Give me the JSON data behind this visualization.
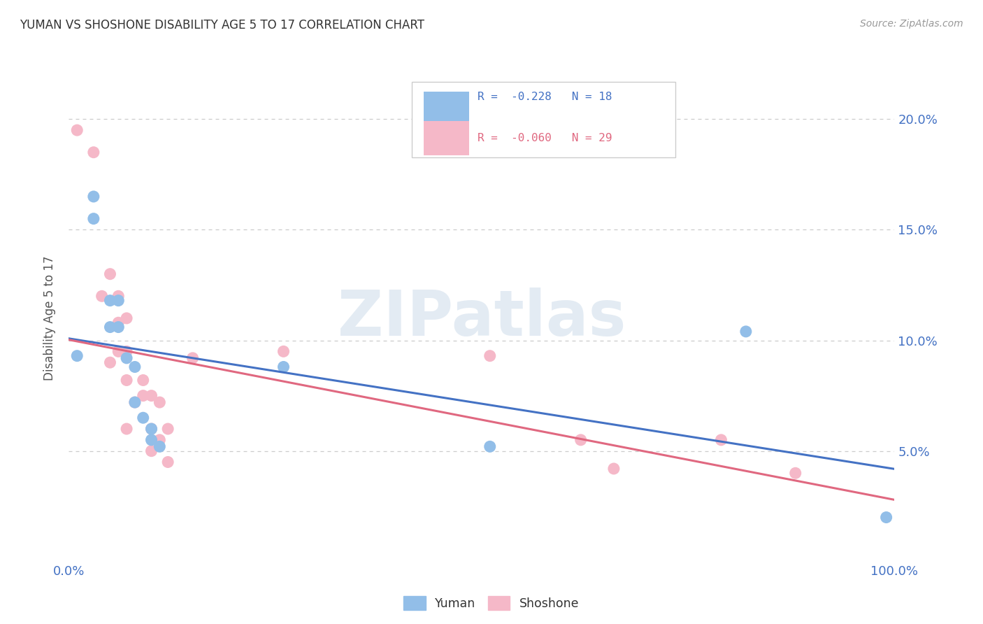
{
  "title": "YUMAN VS SHOSHONE DISABILITY AGE 5 TO 17 CORRELATION CHART",
  "source": "Source: ZipAtlas.com",
  "ylabel": "Disability Age 5 to 17",
  "xlim": [
    0,
    1.0
  ],
  "ylim": [
    0.0,
    0.22
  ],
  "ytick_labels": [
    "5.0%",
    "10.0%",
    "15.0%",
    "20.0%"
  ],
  "ytick_values": [
    0.05,
    0.1,
    0.15,
    0.2
  ],
  "yuman_color": "#92BEE8",
  "shoshone_color": "#F5B8C8",
  "trend_yuman_color": "#4472C4",
  "trend_shoshone_color": "#E06880",
  "watermark": "ZIPatlas",
  "yuman_x": [
    0.01,
    0.03,
    0.03,
    0.05,
    0.05,
    0.06,
    0.06,
    0.07,
    0.08,
    0.08,
    0.09,
    0.1,
    0.1,
    0.11,
    0.26,
    0.51,
    0.82,
    0.99
  ],
  "yuman_y": [
    0.093,
    0.165,
    0.155,
    0.118,
    0.106,
    0.118,
    0.106,
    0.092,
    0.072,
    0.088,
    0.065,
    0.06,
    0.055,
    0.052,
    0.088,
    0.052,
    0.104,
    0.02
  ],
  "shoshone_x": [
    0.01,
    0.03,
    0.04,
    0.05,
    0.05,
    0.06,
    0.06,
    0.06,
    0.07,
    0.07,
    0.07,
    0.07,
    0.08,
    0.09,
    0.09,
    0.1,
    0.1,
    0.1,
    0.11,
    0.11,
    0.12,
    0.12,
    0.15,
    0.26,
    0.51,
    0.62,
    0.66,
    0.79,
    0.88
  ],
  "shoshone_y": [
    0.195,
    0.185,
    0.12,
    0.13,
    0.09,
    0.12,
    0.108,
    0.095,
    0.11,
    0.095,
    0.082,
    0.06,
    0.072,
    0.082,
    0.075,
    0.075,
    0.06,
    0.05,
    0.072,
    0.055,
    0.06,
    0.045,
    0.092,
    0.095,
    0.093,
    0.055,
    0.042,
    0.055,
    0.04
  ],
  "background_color": "#FFFFFF",
  "grid_color": "#CCCCCC"
}
